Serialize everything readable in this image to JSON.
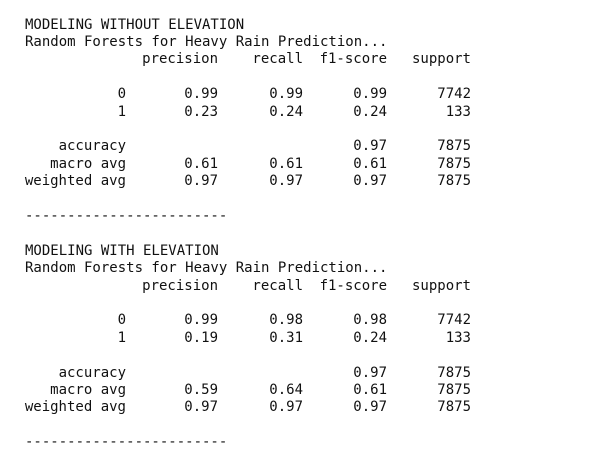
{
  "reports": [
    {
      "title": "MODELING WITHOUT ELEVATION",
      "subtitle": "Random Forests for Heavy Rain Prediction...",
      "columns": [
        "precision",
        "recall",
        "f1-score",
        "support"
      ],
      "rows": [
        {
          "label": "0",
          "cells": [
            "0.99",
            "0.99",
            "0.99",
            "7742"
          ]
        },
        {
          "label": "1",
          "cells": [
            "0.23",
            "0.24",
            "0.24",
            "133"
          ]
        },
        {
          "label": "accuracy",
          "cells": [
            null,
            null,
            "0.97",
            "7875"
          ]
        },
        {
          "label": "macro avg",
          "cells": [
            "0.61",
            "0.61",
            "0.61",
            "7875"
          ]
        },
        {
          "label": "weighted avg",
          "cells": [
            "0.97",
            "0.97",
            "0.97",
            "7875"
          ]
        }
      ],
      "separator": "------------------------"
    },
    {
      "title": "MODELING WITH ELEVATION",
      "subtitle": "Random Forests for Heavy Rain Prediction...",
      "columns": [
        "precision",
        "recall",
        "f1-score",
        "support"
      ],
      "rows": [
        {
          "label": "0",
          "cells": [
            "0.99",
            "0.98",
            "0.98",
            "7742"
          ]
        },
        {
          "label": "1",
          "cells": [
            "0.19",
            "0.31",
            "0.24",
            "133"
          ]
        },
        {
          "label": "accuracy",
          "cells": [
            null,
            null,
            "0.97",
            "7875"
          ]
        },
        {
          "label": "macro avg",
          "cells": [
            "0.59",
            "0.64",
            "0.61",
            "7875"
          ]
        },
        {
          "label": "weighted avg",
          "cells": [
            "0.97",
            "0.97",
            "0.97",
            "7875"
          ]
        }
      ],
      "separator": "------------------------"
    }
  ]
}
